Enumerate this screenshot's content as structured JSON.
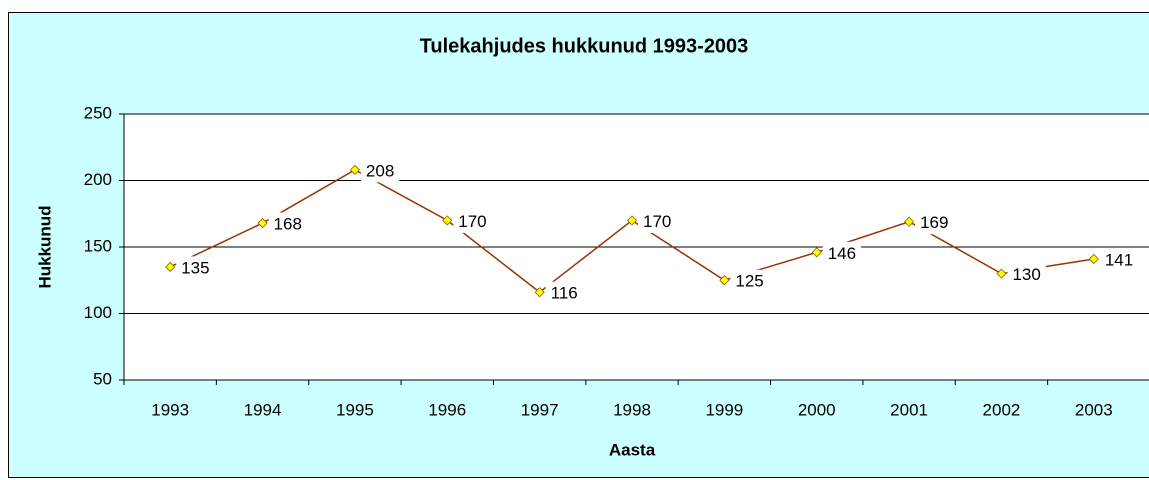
{
  "chart_data": {
    "type": "line",
    "title": "Tulekahjudes hukkunud 1993-2003",
    "x_label": "Aasta",
    "y_label": "Hukkunud",
    "categories": [
      "1993",
      "1994",
      "1995",
      "1996",
      "1997",
      "1998",
      "1999",
      "2000",
      "2001",
      "2002",
      "2003"
    ],
    "series": [
      {
        "name": "Hukkunud",
        "color": "#993300",
        "marker_color": "#ffff00",
        "values": [
          135,
          168,
          208,
          170,
          116,
          170,
          125,
          146,
          169,
          130,
          141
        ]
      }
    ],
    "ylim": [
      50,
      250
    ],
    "yticks": [
      50,
      100,
      150,
      200,
      250
    ],
    "grid": true
  }
}
